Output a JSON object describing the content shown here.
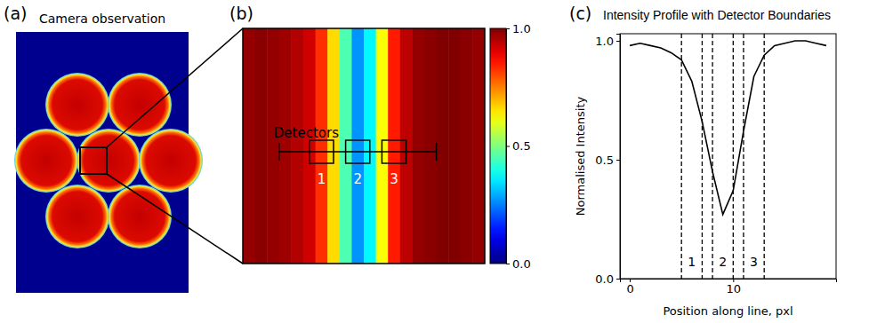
{
  "chart_data": [
    {
      "type": "image",
      "panel": "(a)",
      "title": "Camera observation"
    },
    {
      "type": "heatmap",
      "panel": "(b)",
      "annotation": "Detectors",
      "detectors": [
        {
          "label": "1",
          "start": 5,
          "end": 7
        },
        {
          "label": "2",
          "start": 8,
          "end": 10
        },
        {
          "label": "3",
          "start": 11,
          "end": 13
        }
      ],
      "colorbar": {
        "range": [
          0,
          1
        ],
        "ticks": [
          {
            "value": 0,
            "label": "0.0"
          },
          {
            "value": 0.5,
            "label": "0.5"
          },
          {
            "value": 1,
            "label": "1.0"
          }
        ]
      }
    },
    {
      "type": "line",
      "panel": "(c)",
      "title": "Intensity Profile with Detector Boundaries",
      "x_label": "Position along line, pxl",
      "y_label": "Normalised Intensity",
      "x": [
        0,
        1,
        2,
        3,
        4,
        5,
        6,
        7,
        8,
        9,
        10,
        11,
        12,
        13,
        14,
        15,
        16,
        17,
        18,
        19
      ],
      "values": [
        0.98,
        0.99,
        0.98,
        0.97,
        0.95,
        0.92,
        0.83,
        0.66,
        0.45,
        0.27,
        0.37,
        0.62,
        0.85,
        0.94,
        0.98,
        0.99,
        1.0,
        1.0,
        0.99,
        0.98
      ],
      "color": "#000000",
      "xlim": [
        -0.95,
        19.95
      ],
      "ylim": [
        0,
        1.03
      ],
      "xticks": [
        0,
        10
      ],
      "yticks": [
        {
          "value": 0,
          "label": "0.0"
        },
        {
          "value": 0.5,
          "label": "0.5"
        },
        {
          "value": 1,
          "label": "1.0"
        }
      ],
      "regions": [
        {
          "label": "1",
          "start": 5,
          "end": 7
        },
        {
          "label": "2",
          "start": 8,
          "end": 10
        },
        {
          "label": "3",
          "start": 11,
          "end": 13
        }
      ]
    }
  ]
}
